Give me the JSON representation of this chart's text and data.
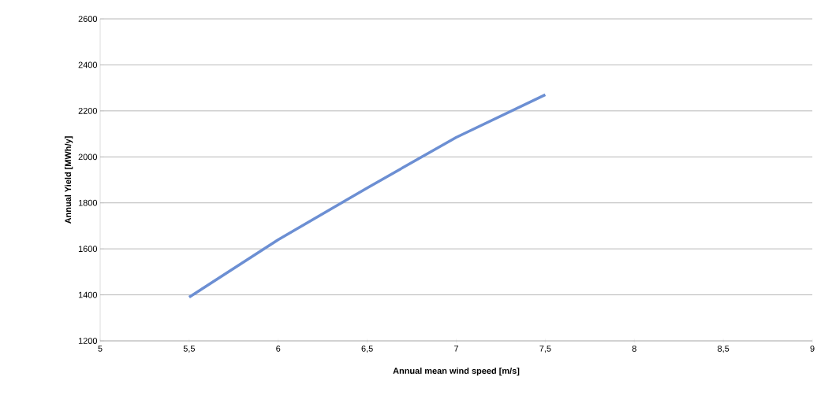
{
  "chart_data": {
    "type": "line",
    "xlabel": "Annual mean wind speed [m/s]",
    "ylabel": "Annual Yield  [MWh/y]",
    "x": [
      5.5,
      6,
      6.5,
      7,
      7.5
    ],
    "series": [
      {
        "color": "#6c8fd3",
        "values": [
          1390,
          1640,
          1865,
          2085,
          2270
        ]
      }
    ],
    "xlim": [
      5,
      9
    ],
    "ylim": [
      1200,
      2600
    ],
    "xticks": [
      5,
      {
        "value": 5.5,
        "label": "5,5"
      },
      6,
      {
        "value": 6.5,
        "label": "6,5"
      },
      7,
      {
        "value": 7.5,
        "label": "7,5"
      },
      8,
      {
        "value": 8.5,
        "label": "8,5"
      },
      9
    ],
    "yticks": [
      1200,
      1400,
      1600,
      1800,
      2000,
      2200,
      2400,
      2600
    ],
    "grid": "y",
    "marker": "none",
    "line_style": "solid"
  }
}
